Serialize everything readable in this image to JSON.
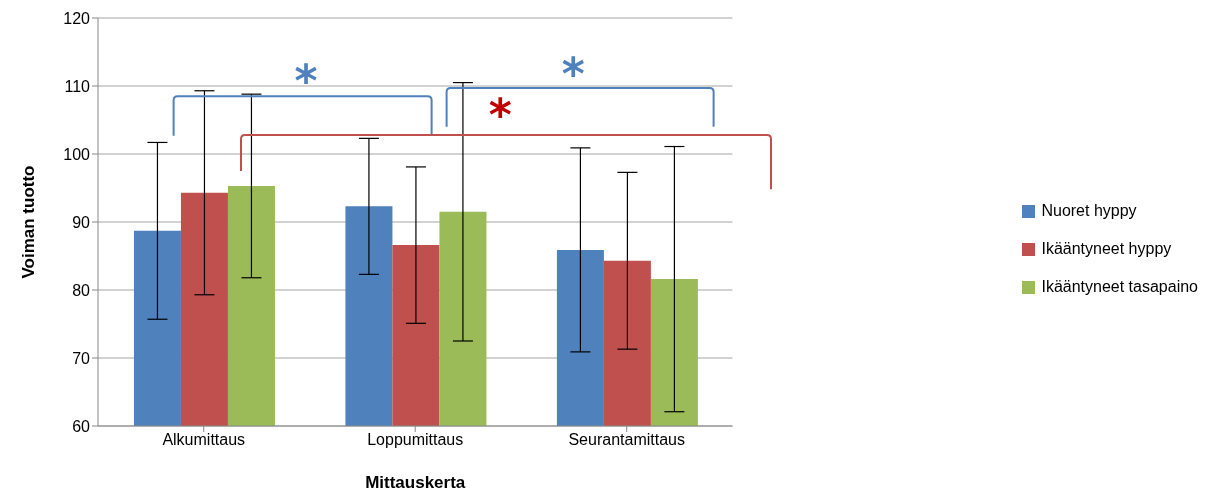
{
  "chart_data": {
    "type": "bar",
    "xlabel": "Mittauskerta",
    "ylabel": "Voiman tuotto",
    "categories": [
      "Alkumittaus",
      "Loppumittaus",
      "Seurantamittaus"
    ],
    "series": [
      {
        "name": "Nuoret hyppy",
        "color": "#4f81bd",
        "values": [
          88.7,
          92.3,
          85.9
        ],
        "errors": [
          13,
          10,
          15
        ]
      },
      {
        "name": "Ikääntyneet hyppy",
        "color": "#c0504d",
        "values": [
          94.3,
          86.6,
          84.3
        ],
        "errors": [
          15,
          11.5,
          13
        ]
      },
      {
        "name": "Ikääntyneet tasapaino",
        "color": "#9bbb59",
        "values": [
          95.3,
          91.5,
          81.6
        ],
        "errors": [
          13.5,
          19,
          19.5
        ]
      }
    ],
    "ylim": [
      60,
      120
    ],
    "yticks": [
      60,
      70,
      80,
      90,
      100,
      110,
      120
    ],
    "grid": "y",
    "legend": "right",
    "annotations": [
      "*",
      "*"
    ]
  }
}
